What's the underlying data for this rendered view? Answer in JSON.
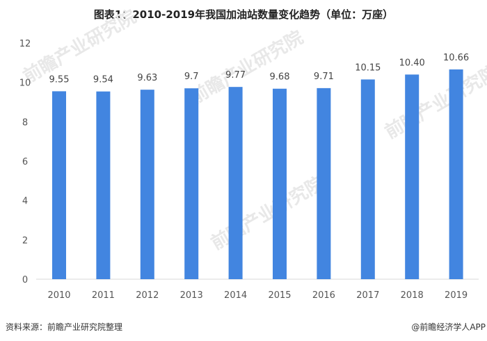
{
  "chart_data": {
    "type": "bar",
    "title": "图表1：2010-2019年我国加油站数量变化趋势（单位：万座）",
    "categories": [
      "2010",
      "2011",
      "2012",
      "2013",
      "2014",
      "2015",
      "2016",
      "2017",
      "2018",
      "2019"
    ],
    "values": [
      9.55,
      9.54,
      9.63,
      9.7,
      9.77,
      9.68,
      9.71,
      10.15,
      10.4,
      10.66
    ],
    "data_labels": [
      "9.55",
      "9.54",
      "9.63",
      "9.7",
      "9.77",
      "9.68",
      "9.71",
      "10.15",
      "10.40",
      "10.66"
    ],
    "yticks": [
      0,
      2,
      4,
      6,
      8,
      10,
      12
    ],
    "ylim": [
      0,
      12
    ],
    "xlabel": "",
    "ylabel": "",
    "grid": false,
    "bar_color": "#4285e0"
  },
  "footer": {
    "source": "资料来源：前瞻产业研究院整理",
    "credit": "@前瞻经济学人APP"
  },
  "watermark": "前瞻产业研究院"
}
